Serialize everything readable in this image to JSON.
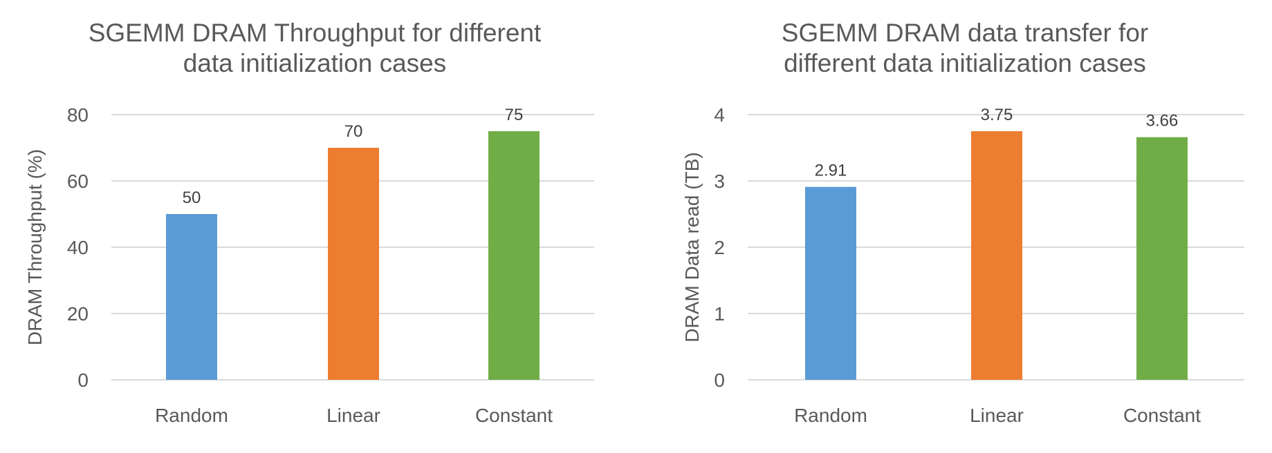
{
  "chart_data": [
    {
      "type": "bar",
      "title_lines": [
        "SGEMM DRAM Throughput for different",
        "data initialization cases"
      ],
      "xlabel": "",
      "ylabel": "DRAM Throughput (%)",
      "categories": [
        "Random",
        "Linear",
        "Constant"
      ],
      "values": [
        50,
        70,
        75
      ],
      "data_labels": [
        "50",
        "70",
        "75"
      ],
      "ylim": [
        0,
        80
      ],
      "yticks": [
        0,
        20,
        40,
        60,
        80
      ],
      "ytick_labels": [
        "0",
        "20",
        "40",
        "60",
        "80"
      ],
      "colors": [
        "#5b9bd5",
        "#ed7d31",
        "#70ad47"
      ],
      "grid": true,
      "legend": "none"
    },
    {
      "type": "bar",
      "title_lines": [
        "SGEMM DRAM data transfer for",
        "different data initialization cases"
      ],
      "xlabel": "",
      "ylabel": "DRAM Data read (TB)",
      "categories": [
        "Random",
        "Linear",
        "Constant"
      ],
      "values": [
        2.91,
        3.75,
        3.66
      ],
      "data_labels": [
        "2.91",
        "3.75",
        "3.66"
      ],
      "ylim": [
        0,
        4
      ],
      "yticks": [
        0,
        1,
        2,
        3,
        4
      ],
      "ytick_labels": [
        "0",
        "1",
        "2",
        "3",
        "4"
      ],
      "colors": [
        "#5b9bd5",
        "#ed7d31",
        "#70ad47"
      ],
      "grid": true,
      "legend": "none"
    }
  ]
}
